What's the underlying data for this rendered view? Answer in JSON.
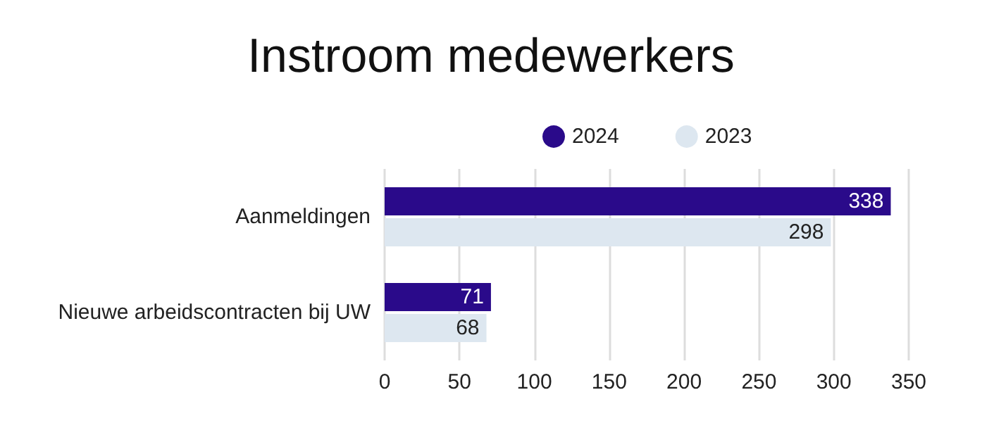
{
  "chart_data": {
    "type": "bar",
    "orientation": "horizontal",
    "title": "Instroom medewerkers",
    "categories": [
      "Aanmeldingen",
      "Nieuwe arbeidscontracten bij UW"
    ],
    "series": [
      {
        "name": "2024",
        "color": "#2a0a8a",
        "values": [
          338,
          71
        ]
      },
      {
        "name": "2023",
        "color": "#dde7f0",
        "values": [
          298,
          68
        ]
      }
    ],
    "xlim": [
      0,
      350
    ],
    "xticks": [
      0,
      50,
      100,
      150,
      200,
      250,
      300,
      350
    ],
    "grid": "x",
    "legend": "top",
    "data_labels": true
  }
}
